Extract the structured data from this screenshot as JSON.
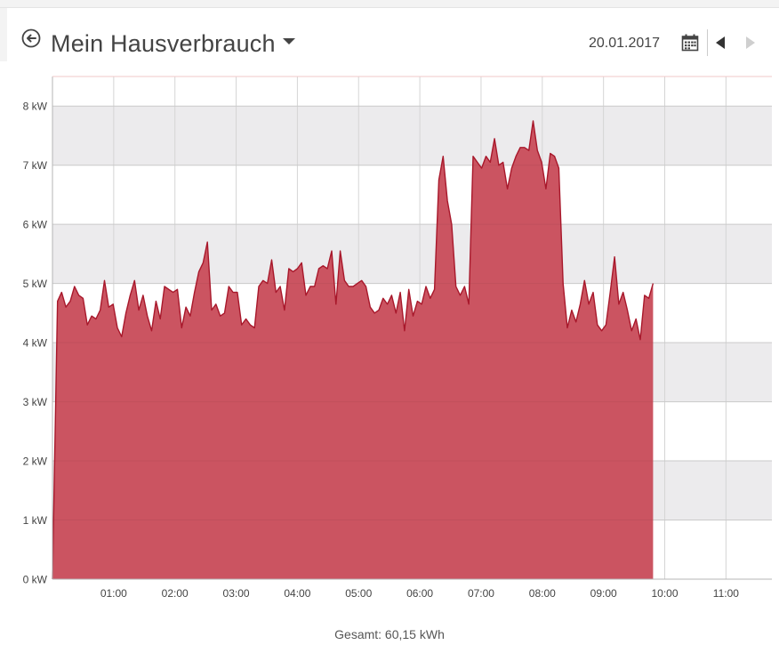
{
  "header": {
    "title": "Mein Hausverbrauch",
    "date": "20.01.2017",
    "icons": {
      "back": "back-circle-arrow-icon",
      "dropdown": "caret-down-icon",
      "calendar": "calendar-icon",
      "prev": "triangle-left-icon",
      "next": "triangle-right-icon"
    }
  },
  "footer": {
    "total_label": "Gesamt: 60,15 kWh"
  },
  "colors": {
    "fill": "#cb5461",
    "line": "#a8182b",
    "band": "#ecebed",
    "grid": "#d5d5d5",
    "text": "#444444"
  },
  "chart_data": {
    "type": "area",
    "title": "",
    "xlabel": "",
    "ylabel": "",
    "unit": "kW",
    "grid": true,
    "alternating_bands": true,
    "xlim": [
      0,
      11.75
    ],
    "ylim": [
      0,
      8.5
    ],
    "x_ticks": [
      {
        "value": 1,
        "label": "01:00"
      },
      {
        "value": 2,
        "label": "02:00"
      },
      {
        "value": 3,
        "label": "03:00"
      },
      {
        "value": 4,
        "label": "04:00"
      },
      {
        "value": 5,
        "label": "05:00"
      },
      {
        "value": 6,
        "label": "06:00"
      },
      {
        "value": 7,
        "label": "07:00"
      },
      {
        "value": 8,
        "label": "08:00"
      },
      {
        "value": 9,
        "label": "09:00"
      },
      {
        "value": 10,
        "label": "10:00"
      },
      {
        "value": 11,
        "label": "11:00"
      }
    ],
    "y_ticks": [
      {
        "value": 0,
        "label": "0 kW"
      },
      {
        "value": 1,
        "label": "1 kW"
      },
      {
        "value": 2,
        "label": "2 kW"
      },
      {
        "value": 3,
        "label": "3 kW"
      },
      {
        "value": 4,
        "label": "4 kW"
      },
      {
        "value": 5,
        "label": "5 kW"
      },
      {
        "value": 6,
        "label": "6 kW"
      },
      {
        "value": 7,
        "label": "7 kW"
      },
      {
        "value": 8,
        "label": "8 kW"
      }
    ],
    "series": [
      {
        "points": [
          [
            0.0,
            0.0
          ],
          [
            0.083,
            4.7
          ],
          [
            0.15,
            4.85
          ],
          [
            0.22,
            4.6
          ],
          [
            0.29,
            4.7
          ],
          [
            0.36,
            4.95
          ],
          [
            0.43,
            4.8
          ],
          [
            0.5,
            4.75
          ],
          [
            0.57,
            4.3
          ],
          [
            0.64,
            4.45
          ],
          [
            0.71,
            4.4
          ],
          [
            0.78,
            4.55
          ],
          [
            0.85,
            5.05
          ],
          [
            0.92,
            4.6
          ],
          [
            0.99,
            4.65
          ],
          [
            1.06,
            4.25
          ],
          [
            1.13,
            4.1
          ],
          [
            1.2,
            4.5
          ],
          [
            1.27,
            4.8
          ],
          [
            1.34,
            5.05
          ],
          [
            1.41,
            4.55
          ],
          [
            1.48,
            4.8
          ],
          [
            1.55,
            4.45
          ],
          [
            1.62,
            4.2
          ],
          [
            1.69,
            4.7
          ],
          [
            1.76,
            4.4
          ],
          [
            1.83,
            4.95
          ],
          [
            1.9,
            4.9
          ],
          [
            1.97,
            4.85
          ],
          [
            2.04,
            4.9
          ],
          [
            2.11,
            4.25
          ],
          [
            2.18,
            4.6
          ],
          [
            2.25,
            4.45
          ],
          [
            2.32,
            4.85
          ],
          [
            2.39,
            5.2
          ],
          [
            2.46,
            5.35
          ],
          [
            2.53,
            5.7
          ],
          [
            2.6,
            4.55
          ],
          [
            2.67,
            4.65
          ],
          [
            2.74,
            4.45
          ],
          [
            2.81,
            4.5
          ],
          [
            2.88,
            4.95
          ],
          [
            2.95,
            4.85
          ],
          [
            3.02,
            4.85
          ],
          [
            3.09,
            4.3
          ],
          [
            3.16,
            4.4
          ],
          [
            3.23,
            4.3
          ],
          [
            3.3,
            4.25
          ],
          [
            3.37,
            4.95
          ],
          [
            3.44,
            5.05
          ],
          [
            3.51,
            5.0
          ],
          [
            3.58,
            5.4
          ],
          [
            3.65,
            4.85
          ],
          [
            3.72,
            4.95
          ],
          [
            3.79,
            4.55
          ],
          [
            3.86,
            5.25
          ],
          [
            3.93,
            5.2
          ],
          [
            4.0,
            5.25
          ],
          [
            4.07,
            5.35
          ],
          [
            4.14,
            4.8
          ],
          [
            4.21,
            4.95
          ],
          [
            4.28,
            4.95
          ],
          [
            4.35,
            5.25
          ],
          [
            4.42,
            5.3
          ],
          [
            4.49,
            5.25
          ],
          [
            4.56,
            5.55
          ],
          [
            4.63,
            4.65
          ],
          [
            4.7,
            5.55
          ],
          [
            4.77,
            5.05
          ],
          [
            4.84,
            4.95
          ],
          [
            4.91,
            4.95
          ],
          [
            4.98,
            5.0
          ],
          [
            5.05,
            5.05
          ],
          [
            5.12,
            4.95
          ],
          [
            5.19,
            4.6
          ],
          [
            5.26,
            4.5
          ],
          [
            5.33,
            4.55
          ],
          [
            5.4,
            4.75
          ],
          [
            5.47,
            4.65
          ],
          [
            5.54,
            4.8
          ],
          [
            5.61,
            4.5
          ],
          [
            5.68,
            4.85
          ],
          [
            5.75,
            4.2
          ],
          [
            5.82,
            4.9
          ],
          [
            5.89,
            4.45
          ],
          [
            5.96,
            4.7
          ],
          [
            6.03,
            4.65
          ],
          [
            6.1,
            4.95
          ],
          [
            6.17,
            4.75
          ],
          [
            6.24,
            4.9
          ],
          [
            6.31,
            6.75
          ],
          [
            6.38,
            7.15
          ],
          [
            6.45,
            6.4
          ],
          [
            6.52,
            6.0
          ],
          [
            6.59,
            4.95
          ],
          [
            6.66,
            4.8
          ],
          [
            6.73,
            4.95
          ],
          [
            6.8,
            4.65
          ],
          [
            6.87,
            7.15
          ],
          [
            6.94,
            7.05
          ],
          [
            7.01,
            6.95
          ],
          [
            7.08,
            7.15
          ],
          [
            7.15,
            7.05
          ],
          [
            7.22,
            7.45
          ],
          [
            7.29,
            7.0
          ],
          [
            7.36,
            7.05
          ],
          [
            7.43,
            6.6
          ],
          [
            7.5,
            6.95
          ],
          [
            7.57,
            7.15
          ],
          [
            7.64,
            7.3
          ],
          [
            7.71,
            7.3
          ],
          [
            7.78,
            7.25
          ],
          [
            7.85,
            7.75
          ],
          [
            7.92,
            7.25
          ],
          [
            7.99,
            7.05
          ],
          [
            8.06,
            6.6
          ],
          [
            8.13,
            7.2
          ],
          [
            8.2,
            7.15
          ],
          [
            8.27,
            6.95
          ],
          [
            8.34,
            5.0
          ],
          [
            8.41,
            4.25
          ],
          [
            8.48,
            4.55
          ],
          [
            8.55,
            4.35
          ],
          [
            8.62,
            4.65
          ],
          [
            8.69,
            5.05
          ],
          [
            8.76,
            4.65
          ],
          [
            8.83,
            4.85
          ],
          [
            8.9,
            4.3
          ],
          [
            8.97,
            4.2
          ],
          [
            9.04,
            4.3
          ],
          [
            9.11,
            4.85
          ],
          [
            9.18,
            5.45
          ],
          [
            9.25,
            4.65
          ],
          [
            9.32,
            4.85
          ],
          [
            9.39,
            4.55
          ],
          [
            9.46,
            4.2
          ],
          [
            9.53,
            4.4
          ],
          [
            9.6,
            4.05
          ],
          [
            9.67,
            4.8
          ],
          [
            9.74,
            4.75
          ],
          [
            9.81,
            5.0
          ]
        ]
      }
    ]
  }
}
